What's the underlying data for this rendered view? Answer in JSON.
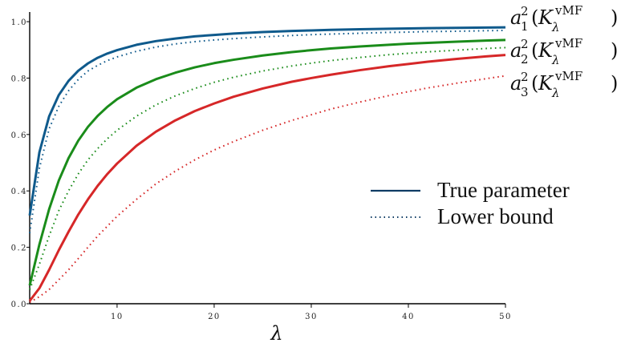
{
  "chart_data": {
    "type": "line",
    "xlabel": "λ",
    "ylabel": "",
    "xlim": [
      1,
      50
    ],
    "ylim": [
      0,
      1.02
    ],
    "x_ticks": [
      10,
      20,
      30,
      40,
      50
    ],
    "y_ticks": [
      0.0,
      0.2,
      0.4,
      0.6,
      0.8,
      1.0
    ],
    "x_tick_labels": [
      "10",
      "20",
      "30",
      "40",
      "50"
    ],
    "y_tick_labels": [
      "0.0",
      "0.2",
      "0.4",
      "0.6",
      "0.8",
      "1.0"
    ],
    "grid": false,
    "legend_position": "center-right",
    "legend": [
      {
        "label": "True parameter",
        "style": "solid"
      },
      {
        "label": "Lower bound",
        "style": "dotted"
      }
    ],
    "curve_labels": [
      {
        "base": "a",
        "sub": "1",
        "sup": "2",
        "kernel": "K",
        "kernel_sub": "λ",
        "kernel_sup": "vMF",
        "color": "#0f5a8c"
      },
      {
        "base": "a",
        "sub": "2",
        "sup": "2",
        "kernel": "K",
        "kernel_sub": "λ",
        "kernel_sup": "vMF",
        "color": "#1a8c1a"
      },
      {
        "base": "a",
        "sub": "3",
        "sup": "2",
        "kernel": "K",
        "kernel_sub": "λ",
        "kernel_sup": "vMF",
        "color": "#d62728"
      }
    ],
    "x": [
      1,
      2,
      3,
      4,
      5,
      6,
      7,
      8,
      9,
      10,
      12,
      14,
      16,
      18,
      20,
      22,
      25,
      28,
      30,
      32,
      35,
      38,
      40,
      42,
      45,
      48,
      50
    ],
    "series": [
      {
        "label_index": 0,
        "style": "solid",
        "color": "#0f5a8c",
        "values": [
          0.313,
          0.537,
          0.664,
          0.74,
          0.79,
          0.826,
          0.852,
          0.872,
          0.887,
          0.899,
          0.918,
          0.931,
          0.94,
          0.948,
          0.953,
          0.958,
          0.963,
          0.967,
          0.969,
          0.971,
          0.973,
          0.975,
          0.976,
          0.977,
          0.978,
          0.979,
          0.98
        ]
      },
      {
        "label_index": 0,
        "style": "dotted",
        "color": "#0f5a8c",
        "values": [
          0.25,
          0.48,
          0.62,
          0.7,
          0.755,
          0.795,
          0.825,
          0.845,
          0.862,
          0.875,
          0.895,
          0.91,
          0.921,
          0.929,
          0.935,
          0.94,
          0.946,
          0.951,
          0.954,
          0.956,
          0.959,
          0.962,
          0.963,
          0.965,
          0.966,
          0.968,
          0.969
        ]
      },
      {
        "label_index": 1,
        "style": "solid",
        "color": "#1a8c1a",
        "values": [
          0.065,
          0.21,
          0.335,
          0.437,
          0.516,
          0.578,
          0.627,
          0.666,
          0.698,
          0.725,
          0.766,
          0.796,
          0.819,
          0.838,
          0.853,
          0.865,
          0.88,
          0.892,
          0.899,
          0.905,
          0.912,
          0.918,
          0.922,
          0.925,
          0.929,
          0.933,
          0.935
        ]
      },
      {
        "label_index": 1,
        "style": "dotted",
        "color": "#1a8c1a",
        "values": [
          0.05,
          0.14,
          0.24,
          0.33,
          0.4,
          0.46,
          0.51,
          0.55,
          0.585,
          0.615,
          0.665,
          0.705,
          0.737,
          0.763,
          0.785,
          0.803,
          0.825,
          0.843,
          0.853,
          0.862,
          0.873,
          0.883,
          0.888,
          0.893,
          0.899,
          0.905,
          0.908
        ]
      },
      {
        "label_index": 2,
        "style": "solid",
        "color": "#d62728",
        "values": [
          0.01,
          0.055,
          0.12,
          0.19,
          0.255,
          0.316,
          0.37,
          0.418,
          0.46,
          0.497,
          0.56,
          0.61,
          0.65,
          0.683,
          0.71,
          0.734,
          0.763,
          0.787,
          0.8,
          0.812,
          0.828,
          0.842,
          0.85,
          0.858,
          0.868,
          0.877,
          0.882
        ]
      },
      {
        "label_index": 2,
        "style": "dotted",
        "color": "#d62728",
        "values": [
          0.005,
          0.025,
          0.05,
          0.085,
          0.12,
          0.16,
          0.2,
          0.24,
          0.275,
          0.31,
          0.37,
          0.425,
          0.47,
          0.51,
          0.545,
          0.575,
          0.615,
          0.65,
          0.67,
          0.69,
          0.715,
          0.738,
          0.752,
          0.765,
          0.782,
          0.798,
          0.808
        ]
      }
    ]
  }
}
